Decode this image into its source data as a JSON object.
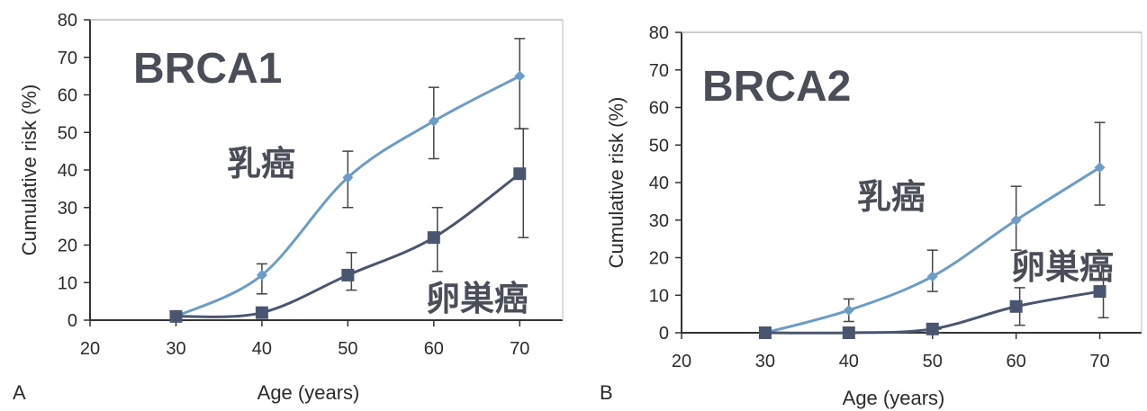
{
  "chart_data": [
    {
      "type": "line",
      "panel_label": "A",
      "title": "BRCA1",
      "xlabel": "Age (years)",
      "ylabel": "Cumulative risk (%)",
      "xlim": [
        20,
        75
      ],
      "ylim": [
        0,
        80
      ],
      "x_ticks": [
        "20",
        "30",
        "40",
        "50",
        "60",
        "70"
      ],
      "y_ticks": [
        "0",
        "10",
        "20",
        "30",
        "40",
        "50",
        "60",
        "70",
        "80"
      ],
      "x": [
        30,
        40,
        50,
        60,
        70
      ],
      "series": [
        {
          "name": "乳癌",
          "marker": "diamond",
          "color": "#6d9cc4",
          "values": [
            1,
            12,
            38,
            53,
            65
          ],
          "err_low": [
            1,
            7,
            30,
            43,
            51
          ],
          "err_high": [
            1,
            15,
            45,
            62,
            75
          ]
        },
        {
          "name": "卵巣癌",
          "marker": "square",
          "color": "#4a5670",
          "values": [
            1,
            2,
            12,
            22,
            39
          ],
          "err_low": [
            1,
            2,
            8,
            13,
            22
          ],
          "err_high": [
            1,
            2,
            18,
            30,
            51
          ]
        }
      ]
    },
    {
      "type": "line",
      "panel_label": "B",
      "title": "BRCA2",
      "xlabel": "Age (years)",
      "ylabel": "Cumulative risk (%)",
      "xlim": [
        20,
        75
      ],
      "ylim": [
        0,
        80
      ],
      "x_ticks": [
        "20",
        "30",
        "40",
        "50",
        "60",
        "70"
      ],
      "y_ticks": [
        "0",
        "10",
        "20",
        "30",
        "40",
        "50",
        "60",
        "70",
        "80"
      ],
      "x": [
        30,
        40,
        50,
        60,
        70
      ],
      "series": [
        {
          "name": "乳癌",
          "marker": "diamond",
          "color": "#6d9cc4",
          "values": [
            0,
            6,
            15,
            30,
            44
          ],
          "err_low": [
            0,
            3,
            11,
            22,
            34
          ],
          "err_high": [
            0,
            9,
            22,
            39,
            56
          ]
        },
        {
          "name": "卵巣癌",
          "marker": "square",
          "color": "#4a5670",
          "values": [
            0,
            0,
            1,
            7,
            11
          ],
          "err_low": [
            0,
            0,
            0,
            2,
            4
          ],
          "err_high": [
            0,
            0,
            1,
            12,
            18
          ]
        }
      ]
    }
  ]
}
